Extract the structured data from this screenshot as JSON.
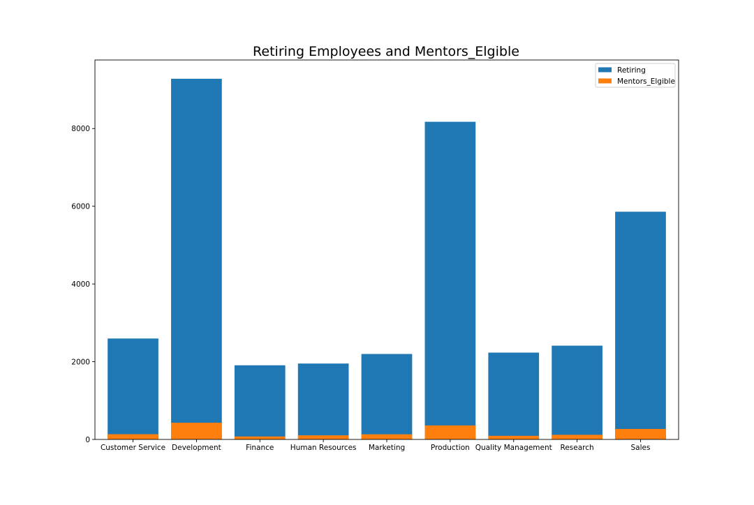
{
  "chart_data": {
    "type": "bar",
    "stacking": "overlaid",
    "title": "Retiring Employees and Mentors_Elgible",
    "xlabel": "",
    "ylabel": "",
    "categories": [
      "Customer Service",
      "Development",
      "Finance",
      "Human Resources",
      "Marketing",
      "Production",
      "Quality Management",
      "Research",
      "Sales"
    ],
    "series": [
      {
        "name": "Retiring",
        "color": "#1f77b4",
        "values": [
          2597,
          9281,
          1908,
          1953,
          2199,
          8174,
          2234,
          2413,
          5860
        ]
      },
      {
        "name": "Mentors_Elgible",
        "color": "#ff7f0e",
        "values": [
          134,
          430,
          76,
          106,
          132,
          361,
          93,
          119,
          270
        ]
      }
    ],
    "ylim": [
      0,
      9764
    ],
    "yticks": [
      0,
      2000,
      4000,
      6000,
      8000
    ],
    "grid": false,
    "legend_position": "top-right"
  }
}
